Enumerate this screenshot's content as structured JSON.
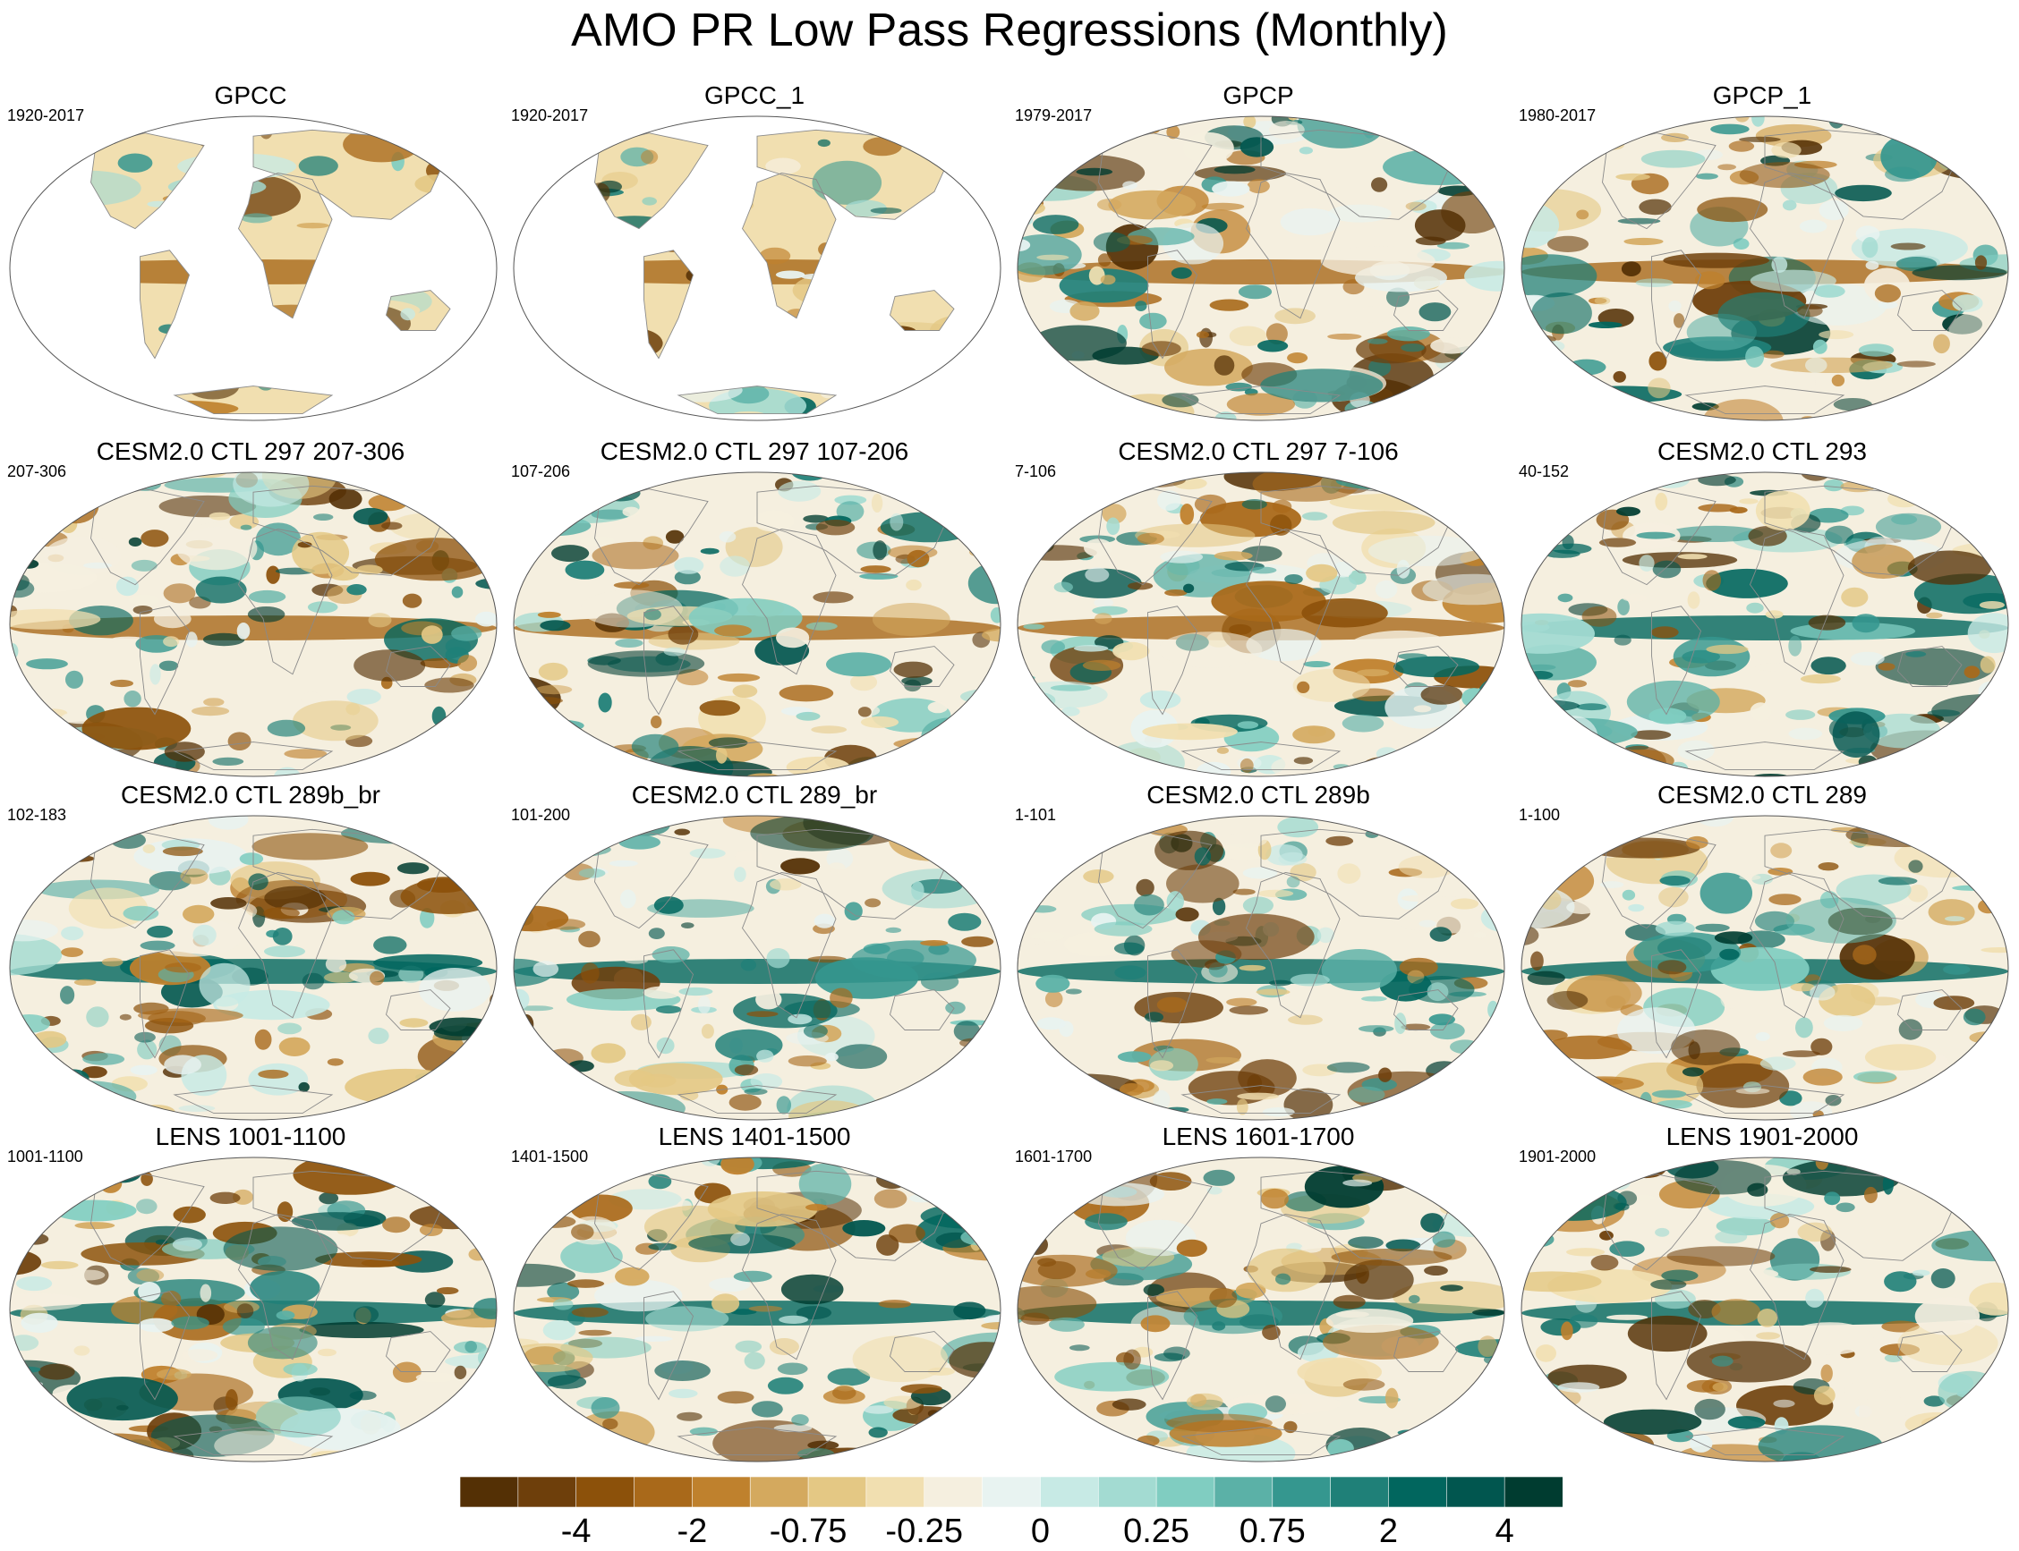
{
  "title": "AMO PR Low Pass Regressions (Monthly)",
  "panels": [
    {
      "title": "GPCC",
      "period": "1920-2017",
      "coverage": "land"
    },
    {
      "title": "GPCC_1",
      "period": "1920-2017",
      "coverage": "land"
    },
    {
      "title": "GPCP",
      "period": "1979-2017",
      "coverage": "global"
    },
    {
      "title": "GPCP_1",
      "period": "1980-2017",
      "coverage": "global"
    },
    {
      "title": "CESM2.0 CTL 297 207-306",
      "period": "207-306",
      "coverage": "global"
    },
    {
      "title": "CESM2.0 CTL 297 107-206",
      "period": "107-206",
      "coverage": "global"
    },
    {
      "title": "CESM2.0 CTL 297 7-106",
      "period": "7-106",
      "coverage": "global"
    },
    {
      "title": "CESM2.0 CTL 293",
      "period": "40-152",
      "coverage": "global"
    },
    {
      "title": "CESM2.0 CTL 289b_br",
      "period": "102-183",
      "coverage": "global"
    },
    {
      "title": "CESM2.0 CTL 289_br",
      "period": "101-200",
      "coverage": "global"
    },
    {
      "title": "CESM2.0 CTL 289b",
      "period": "1-101",
      "coverage": "global"
    },
    {
      "title": "CESM2.0 CTL 289",
      "period": "1-100",
      "coverage": "global"
    },
    {
      "title": "LENS 1001-1100",
      "period": "1001-1100",
      "coverage": "global"
    },
    {
      "title": "LENS 1401-1500",
      "period": "1401-1500",
      "coverage": "global"
    },
    {
      "title": "LENS 1601-1700",
      "period": "1601-1700",
      "coverage": "global"
    },
    {
      "title": "LENS 1901-2000",
      "period": "1901-2000",
      "coverage": "global"
    }
  ],
  "colorbar": {
    "colors": [
      "#543005",
      "#6e3f0b",
      "#8c510a",
      "#a9691a",
      "#bf812d",
      "#d4a95e",
      "#e4c884",
      "#f1dfb0",
      "#f5efdf",
      "#e8f3f1",
      "#c7eae5",
      "#a3dbd2",
      "#80cdc1",
      "#5bb1a7",
      "#35978f",
      "#1f8078",
      "#01665e",
      "#01564f",
      "#003c30"
    ],
    "labels": [
      "-4",
      "-2",
      "-0.75",
      "-0.25",
      "0",
      "0.25",
      "0.75",
      "2",
      "4"
    ],
    "label_boundary_index": [
      2,
      4,
      6,
      8,
      10,
      12,
      14,
      16,
      18
    ]
  }
}
